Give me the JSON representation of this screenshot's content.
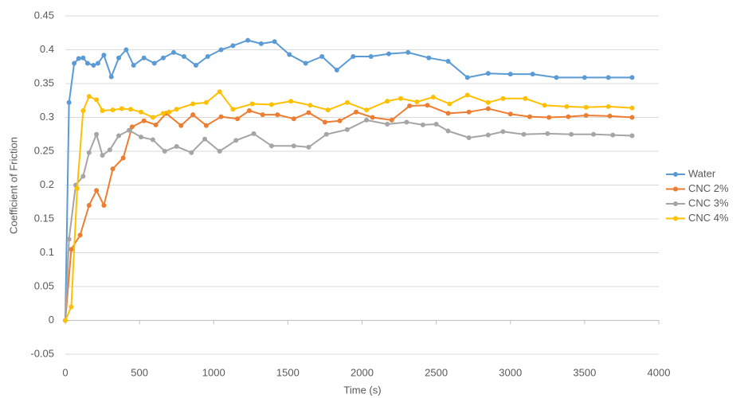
{
  "chart_data": {
    "type": "line",
    "x_label": "Time (s)",
    "y_label": "Coefficient of Friction",
    "xlim": [
      0,
      4000
    ],
    "xticks": [
      0,
      500,
      1000,
      1500,
      2000,
      2500,
      3000,
      3500,
      4000
    ],
    "ylim": [
      -0.05,
      0.45
    ],
    "yticks": [
      -0.05,
      0,
      0.05,
      0.1,
      0.15,
      0.2,
      0.25,
      0.3,
      0.35,
      0.4,
      0.45
    ],
    "grid": true,
    "legend": "right",
    "series": [
      {
        "name": "Water",
        "color": "#5b9bd5",
        "x": [
          0,
          25,
          60,
          90,
          120,
          150,
          190,
          220,
          260,
          310,
          360,
          410,
          460,
          530,
          600,
          660,
          730,
          800,
          880,
          960,
          1050,
          1130,
          1230,
          1320,
          1410,
          1510,
          1620,
          1730,
          1830,
          1940,
          2060,
          2180,
          2310,
          2450,
          2580,
          2710,
          2850,
          3000,
          3150,
          3310,
          3500,
          3660,
          3820
        ],
        "values": [
          0,
          0.322,
          0.38,
          0.387,
          0.388,
          0.38,
          0.377,
          0.38,
          0.392,
          0.36,
          0.388,
          0.4,
          0.377,
          0.388,
          0.38,
          0.388,
          0.396,
          0.39,
          0.377,
          0.39,
          0.4,
          0.406,
          0.414,
          0.409,
          0.412,
          0.393,
          0.38,
          0.39,
          0.37,
          0.39,
          0.39,
          0.394,
          0.396,
          0.388,
          0.383,
          0.359,
          0.365,
          0.364,
          0.364,
          0.359,
          0.359,
          0.359,
          0.359
        ]
      },
      {
        "name": "CNC 2%",
        "color": "#ed7d31",
        "x": [
          0,
          40,
          100,
          160,
          210,
          260,
          320,
          390,
          450,
          530,
          610,
          680,
          780,
          860,
          950,
          1050,
          1160,
          1240,
          1330,
          1430,
          1540,
          1640,
          1750,
          1850,
          1960,
          2070,
          2200,
          2320,
          2440,
          2580,
          2720,
          2850,
          3000,
          3130,
          3260,
          3390,
          3510,
          3670,
          3820
        ],
        "values": [
          0,
          0.105,
          0.126,
          0.17,
          0.192,
          0.17,
          0.224,
          0.24,
          0.286,
          0.295,
          0.289,
          0.306,
          0.288,
          0.304,
          0.288,
          0.301,
          0.298,
          0.31,
          0.304,
          0.304,
          0.298,
          0.307,
          0.293,
          0.295,
          0.308,
          0.3,
          0.296,
          0.317,
          0.318,
          0.306,
          0.308,
          0.313,
          0.305,
          0.301,
          0.3,
          0.301,
          0.303,
          0.302,
          0.3
        ]
      },
      {
        "name": "CNC 3%",
        "color": "#a5a5a5",
        "x": [
          0,
          25,
          70,
          120,
          160,
          210,
          250,
          300,
          360,
          430,
          510,
          590,
          670,
          750,
          850,
          940,
          1040,
          1150,
          1270,
          1390,
          1540,
          1640,
          1760,
          1900,
          2030,
          2170,
          2300,
          2410,
          2500,
          2580,
          2720,
          2850,
          2950,
          3090,
          3250,
          3410,
          3560,
          3690,
          3820
        ],
        "values": [
          0,
          0.12,
          0.2,
          0.213,
          0.248,
          0.275,
          0.244,
          0.252,
          0.273,
          0.281,
          0.271,
          0.267,
          0.25,
          0.257,
          0.248,
          0.268,
          0.25,
          0.266,
          0.276,
          0.258,
          0.258,
          0.256,
          0.275,
          0.282,
          0.296,
          0.29,
          0.293,
          0.289,
          0.29,
          0.28,
          0.27,
          0.274,
          0.279,
          0.275,
          0.276,
          0.275,
          0.275,
          0.274,
          0.273
        ]
      },
      {
        "name": "CNC 4%",
        "color": "#ffc000",
        "x": [
          0,
          40,
          80,
          120,
          160,
          210,
          250,
          320,
          380,
          440,
          510,
          590,
          660,
          700,
          750,
          860,
          950,
          1040,
          1130,
          1260,
          1390,
          1520,
          1650,
          1770,
          1900,
          2030,
          2170,
          2260,
          2370,
          2480,
          2590,
          2710,
          2850,
          2950,
          3100,
          3230,
          3380,
          3510,
          3660,
          3820
        ],
        "values": [
          0,
          0.02,
          0.195,
          0.31,
          0.331,
          0.326,
          0.31,
          0.311,
          0.313,
          0.312,
          0.308,
          0.3,
          0.306,
          0.308,
          0.312,
          0.32,
          0.322,
          0.338,
          0.312,
          0.32,
          0.319,
          0.324,
          0.318,
          0.311,
          0.322,
          0.311,
          0.324,
          0.328,
          0.323,
          0.33,
          0.32,
          0.333,
          0.322,
          0.328,
          0.328,
          0.318,
          0.316,
          0.315,
          0.316,
          0.314
        ]
      }
    ]
  }
}
